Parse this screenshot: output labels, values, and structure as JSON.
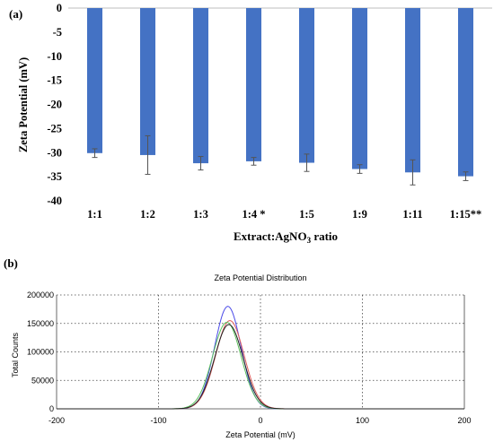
{
  "panel_a": {
    "tag": "(a)",
    "x_axis_label": "Extract:AgNO",
    "x_axis_label_sub": "3",
    "x_axis_label_end": " ratio",
    "y_axis_label": "Zeta Potential (mV)"
  },
  "panel_b": {
    "tag": "(b)",
    "title": "Zeta Potential Distribution",
    "x_axis_label": "Zeta Potential (mV)",
    "y_axis_label": "Total Counts"
  },
  "colors": {
    "bar": "#4472C4",
    "curve_blue": "#4a4ae8",
    "curve_red": "#e06060",
    "curve_green": "#5cc05c",
    "curve_black": "#222222"
  },
  "chart_data": [
    {
      "type": "bar",
      "categories": [
        "1:1",
        "1:2",
        "1:3",
        "1:4 *",
        "1:5",
        "1:9",
        "1:11",
        "1:15**"
      ],
      "values": [
        -30.1,
        -30.5,
        -32.2,
        -31.8,
        -32.1,
        -33.4,
        -34.1,
        -34.9
      ],
      "errors": [
        0.9,
        4.0,
        1.4,
        0.8,
        1.8,
        0.9,
        2.6,
        0.9
      ],
      "ylim": [
        -40,
        0
      ],
      "yticks": [
        0,
        -5,
        -10,
        -15,
        -20,
        -25,
        -30,
        -35,
        -40
      ],
      "grid": false
    },
    {
      "type": "line",
      "xlim": [
        -200,
        200
      ],
      "ylim": [
        0,
        200000
      ],
      "xticks": [
        -200,
        -100,
        0,
        100,
        200
      ],
      "yticks": [
        0,
        50000,
        100000,
        150000,
        200000
      ],
      "grid": true,
      "series": [
        {
          "color_key": "curve_blue",
          "center": -32,
          "peak": 180000,
          "width": 13
        },
        {
          "color_key": "curve_red",
          "center": -30,
          "peak": 155000,
          "width": 14
        },
        {
          "color_key": "curve_green",
          "center": -33,
          "peak": 152000,
          "width": 14
        },
        {
          "color_key": "curve_black",
          "center": -31,
          "peak": 148000,
          "width": 14
        }
      ]
    }
  ]
}
